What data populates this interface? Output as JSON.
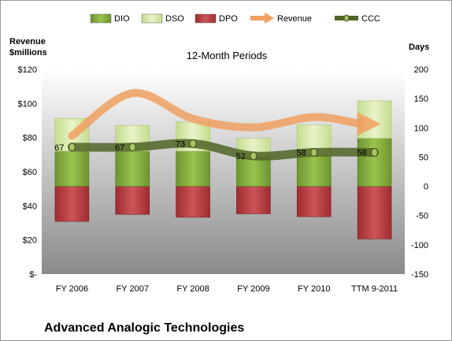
{
  "chart_data": {
    "type": "bar",
    "title": "12-Month Periods",
    "company": "Advanced Analogic Technologies",
    "left_axis_label": [
      "Revenue",
      "$millions"
    ],
    "right_axis_label": "Days",
    "left_ylim": [
      0,
      120
    ],
    "right_ylim": [
      -150,
      200
    ],
    "left_ticks": [
      "$120",
      "$100",
      "$80",
      "$60",
      "$40",
      "$20",
      "$-"
    ],
    "right_ticks": [
      "200",
      "150",
      "100",
      "50",
      "0",
      "-50",
      "-100",
      "-150"
    ],
    "categories": [
      "FY 2006",
      "FY 2007",
      "FY 2008",
      "FY 2009",
      "FY 2010",
      "TTM 9-2011"
    ],
    "legend": [
      "DIO",
      "DSO",
      "DPO",
      "Revenue",
      "CCC"
    ],
    "series": [
      {
        "name": "DIO",
        "axis": "right",
        "values": [
          60,
          60,
          60,
          50,
          53,
          82
        ]
      },
      {
        "name": "DSO",
        "axis": "right",
        "values": [
          56,
          44,
          50,
          32,
          52,
          64
        ]
      },
      {
        "name": "DPO",
        "axis": "right",
        "values": [
          -60,
          -48,
          -53,
          -47,
          -52,
          -90
        ]
      },
      {
        "name": "Revenue",
        "axis": "left",
        "values": [
          81,
          106,
          91,
          86,
          92,
          88
        ]
      },
      {
        "name": "CCC",
        "axis": "right",
        "values": [
          67,
          67,
          73,
          52,
          58,
          58
        ]
      }
    ],
    "ccc_labels": [
      "67",
      "67",
      "73",
      "52",
      "58",
      "58"
    ],
    "colors": {
      "DIO": "#7ea43c",
      "DSO": "#d4e6a6",
      "DPO": "#b83a3d",
      "Revenue": "#f0a060",
      "CCC": "#5a6e2c"
    }
  }
}
